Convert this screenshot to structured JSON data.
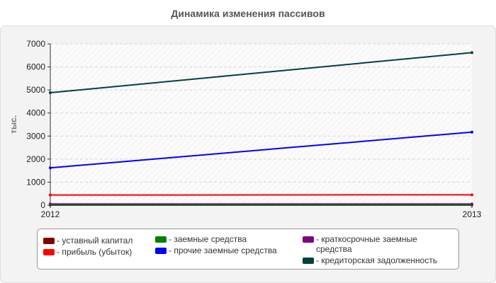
{
  "chart_data": {
    "type": "line",
    "title": "Динамика изменения пассивов",
    "ylabel": "тыс.",
    "xlabel": "",
    "categories": [
      "2012",
      "2013"
    ],
    "ylim": [
      0,
      7000
    ],
    "yticks": [
      "0",
      "1000",
      "2000",
      "3000",
      "4000",
      "5000",
      "6000",
      "7000"
    ],
    "grid": true,
    "legend_position": "bottom",
    "series": [
      {
        "name": "- уставный капитал",
        "color": "#800000",
        "values": [
          10,
          10
        ]
      },
      {
        "name": "- прибыль (убыток)",
        "color": "#ff0000",
        "values": [
          440,
          450
        ]
      },
      {
        "name": "- заемные средства",
        "color": "#008000",
        "values": [
          0,
          0
        ]
      },
      {
        "name": "- прочие заемные средства",
        "color": "#0000ff",
        "values": [
          1620,
          3170
        ]
      },
      {
        "name": "- краткосрочные заемные средства",
        "color": "#800080",
        "values": [
          50,
          50
        ]
      },
      {
        "name": "- кредиторская задолженность",
        "color": "#004040",
        "values": [
          4880,
          6620
        ]
      }
    ]
  }
}
